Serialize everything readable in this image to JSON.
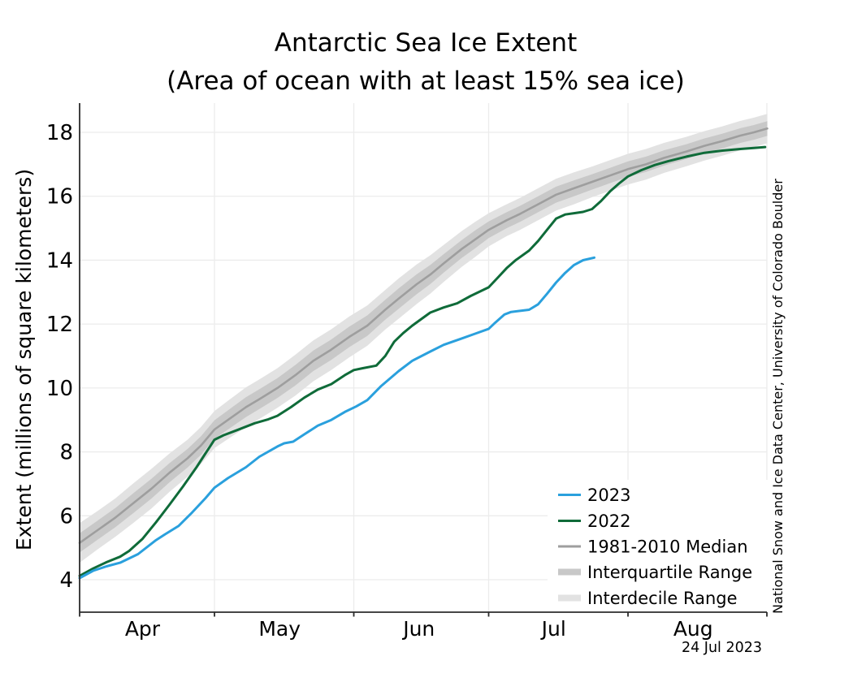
{
  "title": "Antarctic Sea Ice Extent",
  "subtitle": "(Area of ocean with at least 15% sea ice)",
  "y_axis": {
    "label": "Extent (millions of square kilometers)",
    "ticks": [
      4,
      6,
      8,
      10,
      12,
      14,
      16,
      18
    ]
  },
  "x_axis": {
    "month_labels": [
      "Apr",
      "May",
      "Jun",
      "Jul",
      "Aug"
    ],
    "label_days": [
      105,
      135.5,
      166.5,
      196.5,
      227.5
    ],
    "month_start_days": [
      91,
      121,
      152,
      182,
      213,
      244
    ]
  },
  "legend": {
    "entries": [
      {
        "label": "2023",
        "swatch": "line",
        "color": "#2aa0dd"
      },
      {
        "label": "2022",
        "swatch": "line",
        "color": "#0f6b39"
      },
      {
        "label": "1981-2010 Median",
        "swatch": "line",
        "color": "#9e9e9e"
      },
      {
        "label": "Interquartile Range",
        "swatch": "band",
        "color": "#c8c8c8"
      },
      {
        "label": "Interdecile Range",
        "swatch": "band",
        "color": "#e2e2e2"
      }
    ]
  },
  "credit": "National Snow and Ice Data Center, University of Colorado Boulder",
  "date_label": "24 Jul 2023",
  "colors": {
    "line_2023": "#2aa0dd",
    "line_2022": "#0f6b39",
    "median": "#9e9e9e",
    "interquartile": "#c8c8c8",
    "interdecile": "#e2e2e2",
    "gridline": "#ececec",
    "spine": "#2b2b2b"
  },
  "chart_data": {
    "type": "line",
    "title": "Antarctic Sea Ice Extent",
    "subtitle": "(Area of ocean with at least 15% sea ice)",
    "xlabel": "",
    "ylabel": "Extent (millions of square kilometers)",
    "x_unit": "day of year",
    "ylim": [
      2.95,
      18.95
    ],
    "x_domain_days": [
      91,
      244
    ],
    "grid": true,
    "legend_position": "lower right",
    "series": [
      {
        "name": "2023",
        "color": "#2aa0dd",
        "points": [
          [
            91,
            4.05
          ],
          [
            94,
            4.28
          ],
          [
            97,
            4.42
          ],
          [
            100,
            4.53
          ],
          [
            104,
            4.8
          ],
          [
            108,
            5.24
          ],
          [
            110,
            5.42
          ],
          [
            113,
            5.68
          ],
          [
            116,
            6.1
          ],
          [
            119,
            6.55
          ],
          [
            121,
            6.88
          ],
          [
            124,
            7.18
          ],
          [
            128,
            7.52
          ],
          [
            131,
            7.85
          ],
          [
            135,
            8.17
          ],
          [
            136.5,
            8.27
          ],
          [
            138.5,
            8.32
          ],
          [
            141,
            8.55
          ],
          [
            144,
            8.82
          ],
          [
            147,
            9.0
          ],
          [
            150,
            9.25
          ],
          [
            152.5,
            9.42
          ],
          [
            155,
            9.62
          ],
          [
            158,
            10.05
          ],
          [
            162,
            10.53
          ],
          [
            165,
            10.85
          ],
          [
            169,
            11.14
          ],
          [
            172,
            11.35
          ],
          [
            176,
            11.55
          ],
          [
            179,
            11.7
          ],
          [
            182,
            11.85
          ],
          [
            183.5,
            12.05
          ],
          [
            185.5,
            12.3
          ],
          [
            187,
            12.38
          ],
          [
            191,
            12.45
          ],
          [
            193,
            12.62
          ],
          [
            195,
            12.95
          ],
          [
            197,
            13.3
          ],
          [
            199,
            13.6
          ],
          [
            201,
            13.85
          ],
          [
            203,
            14.0
          ],
          [
            205.5,
            14.08
          ]
        ]
      },
      {
        "name": "2022",
        "color": "#0f6b39",
        "points": [
          [
            91,
            4.12
          ],
          [
            94,
            4.35
          ],
          [
            97,
            4.55
          ],
          [
            100,
            4.72
          ],
          [
            102,
            4.9
          ],
          [
            105,
            5.28
          ],
          [
            108,
            5.8
          ],
          [
            111,
            6.35
          ],
          [
            114,
            6.92
          ],
          [
            117,
            7.52
          ],
          [
            119,
            7.95
          ],
          [
            121,
            8.38
          ],
          [
            123,
            8.52
          ],
          [
            126,
            8.68
          ],
          [
            130,
            8.9
          ],
          [
            133,
            9.02
          ],
          [
            135,
            9.13
          ],
          [
            138,
            9.4
          ],
          [
            141,
            9.7
          ],
          [
            144,
            9.95
          ],
          [
            147,
            10.12
          ],
          [
            150,
            10.4
          ],
          [
            152,
            10.56
          ],
          [
            154,
            10.62
          ],
          [
            157,
            10.7
          ],
          [
            159,
            11.0
          ],
          [
            161,
            11.45
          ],
          [
            163,
            11.72
          ],
          [
            165,
            11.95
          ],
          [
            169,
            12.36
          ],
          [
            172,
            12.52
          ],
          [
            175,
            12.65
          ],
          [
            178,
            12.88
          ],
          [
            182,
            13.15
          ],
          [
            184,
            13.45
          ],
          [
            186,
            13.75
          ],
          [
            188,
            14.0
          ],
          [
            191,
            14.3
          ],
          [
            193,
            14.6
          ],
          [
            195,
            14.95
          ],
          [
            197,
            15.3
          ],
          [
            199,
            15.43
          ],
          [
            201,
            15.47
          ],
          [
            203,
            15.51
          ],
          [
            205,
            15.6
          ],
          [
            207,
            15.85
          ],
          [
            209,
            16.15
          ],
          [
            211,
            16.4
          ],
          [
            213,
            16.62
          ],
          [
            216,
            16.82
          ],
          [
            219,
            16.98
          ],
          [
            222,
            17.1
          ],
          [
            226,
            17.24
          ],
          [
            230,
            17.36
          ],
          [
            234,
            17.43
          ],
          [
            238,
            17.48
          ],
          [
            241,
            17.51
          ],
          [
            243.5,
            17.54
          ]
        ]
      },
      {
        "name": "1981-2010 Median",
        "color": "#9e9e9e",
        "points": [
          [
            91,
            5.15
          ],
          [
            95,
            5.55
          ],
          [
            99,
            5.95
          ],
          [
            103,
            6.4
          ],
          [
            107,
            6.85
          ],
          [
            111,
            7.35
          ],
          [
            115,
            7.8
          ],
          [
            118,
            8.2
          ],
          [
            121,
            8.7
          ],
          [
            124,
            9.0
          ],
          [
            128,
            9.4
          ],
          [
            131,
            9.65
          ],
          [
            135,
            10.0
          ],
          [
            139,
            10.4
          ],
          [
            143,
            10.85
          ],
          [
            147,
            11.2
          ],
          [
            151,
            11.6
          ],
          [
            155,
            11.95
          ],
          [
            159,
            12.45
          ],
          [
            162,
            12.8
          ],
          [
            166,
            13.25
          ],
          [
            169,
            13.55
          ],
          [
            172,
            13.9
          ],
          [
            176,
            14.35
          ],
          [
            179,
            14.65
          ],
          [
            182,
            14.95
          ],
          [
            186,
            15.25
          ],
          [
            189,
            15.45
          ],
          [
            193,
            15.75
          ],
          [
            197,
            16.05
          ],
          [
            201,
            16.25
          ],
          [
            205,
            16.45
          ],
          [
            209,
            16.65
          ],
          [
            213,
            16.85
          ],
          [
            217,
            17.0
          ],
          [
            221,
            17.2
          ],
          [
            226,
            17.4
          ],
          [
            230,
            17.58
          ],
          [
            234,
            17.73
          ],
          [
            238,
            17.9
          ],
          [
            241,
            18.0
          ],
          [
            244,
            18.12
          ]
        ]
      }
    ],
    "bands": [
      {
        "name": "Interdecile Range",
        "color": "#e2e2e2",
        "around": "1981-2010 Median",
        "half_width": [
          0.62,
          0.6,
          0.6,
          0.62,
          0.62,
          0.6,
          0.58,
          0.58,
          0.58,
          0.6,
          0.62,
          0.62,
          0.62,
          0.64,
          0.64,
          0.64,
          0.64,
          0.63,
          0.62,
          0.63,
          0.62,
          0.6,
          0.58,
          0.56,
          0.55,
          0.52,
          0.5,
          0.5,
          0.5,
          0.5,
          0.5,
          0.48,
          0.48,
          0.48,
          0.48,
          0.47,
          0.46,
          0.46,
          0.46,
          0.46,
          0.46,
          0.46
        ]
      },
      {
        "name": "Interquartile Range",
        "color": "#c8c8c8",
        "around": "1981-2010 Median",
        "half_width": [
          0.3,
          0.3,
          0.3,
          0.31,
          0.31,
          0.3,
          0.29,
          0.29,
          0.29,
          0.3,
          0.31,
          0.31,
          0.31,
          0.32,
          0.32,
          0.32,
          0.32,
          0.32,
          0.31,
          0.32,
          0.31,
          0.3,
          0.29,
          0.28,
          0.28,
          0.26,
          0.25,
          0.25,
          0.25,
          0.25,
          0.25,
          0.24,
          0.24,
          0.24,
          0.24,
          0.24,
          0.23,
          0.23,
          0.23,
          0.23,
          0.23,
          0.23
        ]
      }
    ]
  }
}
